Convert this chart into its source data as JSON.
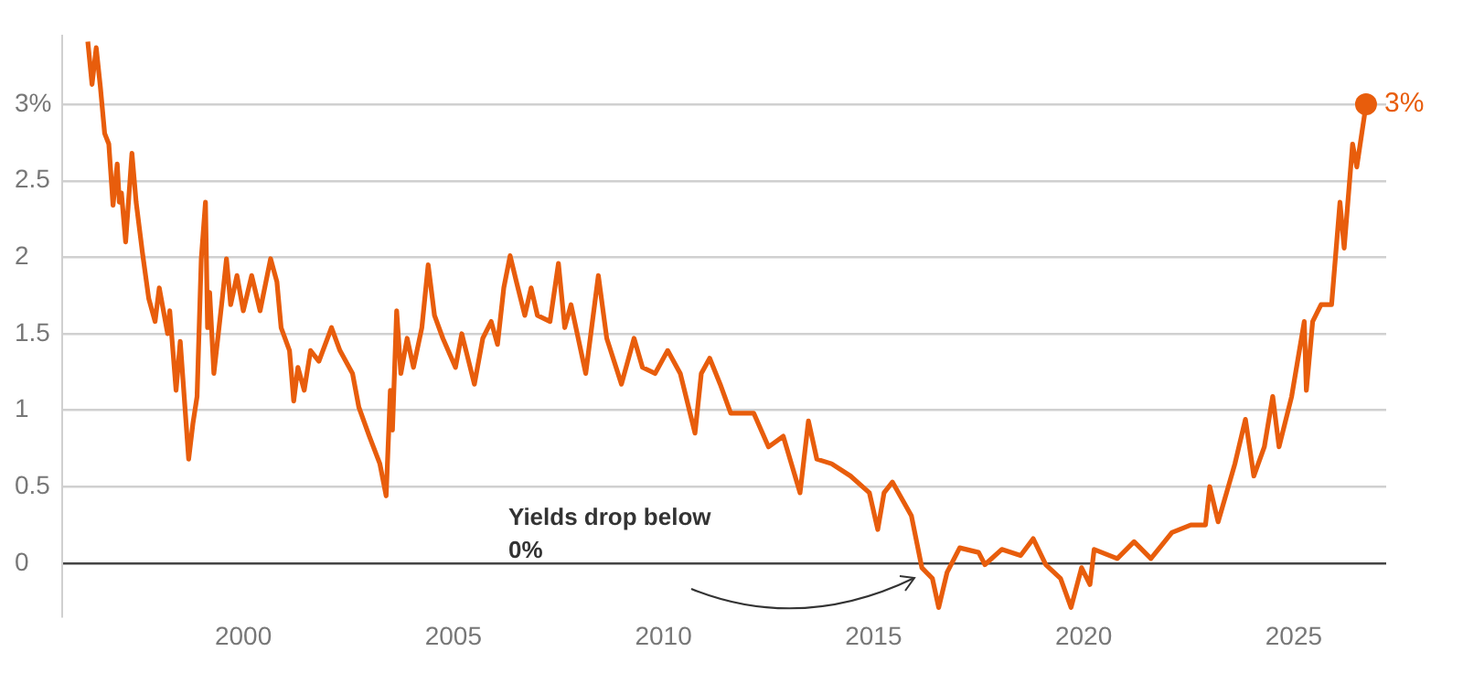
{
  "chart_data": {
    "type": "line",
    "x": [
      1996.3,
      1996.4,
      1996.5,
      1996.6,
      1996.7,
      1996.8,
      1996.9,
      1997.0,
      1997.05,
      1997.1,
      1997.2,
      1997.35,
      1997.45,
      1997.6,
      1997.75,
      1997.9,
      1998.0,
      1998.2,
      1998.25,
      1998.4,
      1998.5,
      1998.7,
      1998.8,
      1998.9,
      1999.0,
      1999.1,
      1999.15,
      1999.2,
      1999.3,
      1999.5,
      1999.6,
      1999.7,
      1999.85,
      2000.0,
      2000.2,
      2000.4,
      2000.65,
      2000.8,
      2000.9,
      2001.1,
      2001.2,
      2001.3,
      2001.45,
      2001.6,
      2001.8,
      2002.1,
      2002.3,
      2002.6,
      2002.75,
      2003.0,
      2003.25,
      2003.4,
      2003.5,
      2003.55,
      2003.65,
      2003.75,
      2003.9,
      2004.05,
      2004.25,
      2004.4,
      2004.55,
      2004.75,
      2005.05,
      2005.2,
      2005.5,
      2005.7,
      2005.9,
      2006.05,
      2006.2,
      2006.35,
      2006.5,
      2006.7,
      2006.85,
      2007.0,
      2007.3,
      2007.5,
      2007.65,
      2007.8,
      2008.15,
      2008.45,
      2008.65,
      2009.0,
      2009.3,
      2009.5,
      2009.8,
      2010.1,
      2010.4,
      2010.75,
      2010.9,
      2011.1,
      2011.35,
      2011.6,
      2012.15,
      2012.5,
      2012.85,
      2013.25,
      2013.45,
      2013.65,
      2014.0,
      2014.45,
      2014.9,
      2015.1,
      2015.25,
      2015.45,
      2015.9,
      2016.15,
      2016.4,
      2016.55,
      2016.75,
      2017.05,
      2017.5,
      2017.65,
      2018.05,
      2018.5,
      2018.8,
      2019.1,
      2019.45,
      2019.7,
      2019.95,
      2020.15,
      2020.25,
      2020.8,
      2021.2,
      2021.6,
      2022.1,
      2022.55,
      2022.9,
      2023.0,
      2023.2,
      2023.4,
      2023.6,
      2023.85,
      2024.05,
      2024.3,
      2024.5,
      2024.65,
      2024.95,
      2025.25,
      2025.3,
      2025.45,
      2025.65,
      2025.9,
      2026.1,
      2026.2,
      2026.4,
      2026.5,
      2026.7,
      2026.72
    ],
    "series": [
      {
        "color": "#e85d0c",
        "values": [
          3.41,
          3.13,
          3.37,
          3.11,
          2.81,
          2.74,
          2.34,
          2.61,
          2.36,
          2.42,
          2.1,
          2.68,
          2.36,
          2.03,
          1.73,
          1.58,
          1.8,
          1.5,
          1.65,
          1.13,
          1.45,
          0.68,
          0.91,
          1.09,
          1.99,
          2.36,
          1.54,
          1.77,
          1.24,
          1.73,
          1.99,
          1.69,
          1.88,
          1.65,
          1.88,
          1.65,
          1.99,
          1.84,
          1.54,
          1.39,
          1.06,
          1.28,
          1.13,
          1.39,
          1.32,
          1.54,
          1.39,
          1.24,
          1.02,
          0.83,
          0.65,
          0.44,
          1.13,
          0.87,
          1.65,
          1.24,
          1.47,
          1.28,
          1.54,
          1.95,
          1.62,
          1.47,
          1.28,
          1.5,
          1.17,
          1.47,
          1.58,
          1.43,
          1.8,
          2.01,
          1.84,
          1.62,
          1.8,
          1.62,
          1.58,
          1.96,
          1.54,
          1.69,
          1.24,
          1.88,
          1.47,
          1.17,
          1.47,
          1.28,
          1.24,
          1.39,
          1.24,
          0.85,
          1.24,
          1.34,
          1.17,
          0.98,
          0.98,
          0.76,
          0.83,
          0.46,
          0.93,
          0.68,
          0.65,
          0.57,
          0.46,
          0.22,
          0.46,
          0.53,
          0.31,
          -0.03,
          -0.1,
          -0.29,
          -0.06,
          0.1,
          0.07,
          -0.01,
          0.09,
          0.05,
          0.16,
          -0.01,
          -0.1,
          -0.29,
          -0.03,
          -0.14,
          0.09,
          0.03,
          0.14,
          0.03,
          0.2,
          0.25,
          0.25,
          0.5,
          0.27,
          0.46,
          0.65,
          0.94,
          0.57,
          0.76,
          1.09,
          0.76,
          1.09,
          1.58,
          1.13,
          1.58,
          1.69,
          1.69,
          2.36,
          2.06,
          2.74,
          2.59,
          2.96,
          3.0
        ],
        "value_labels": [
          null,
          null,
          null,
          null,
          null,
          null,
          null,
          null,
          null,
          null,
          null,
          null,
          null,
          null,
          null,
          null,
          null,
          null,
          null,
          null,
          null,
          null,
          null,
          null,
          null,
          null,
          null,
          null,
          null,
          null,
          null,
          null,
          null,
          null,
          null,
          null,
          null,
          null,
          null,
          null,
          null,
          null,
          null,
          null,
          null,
          null,
          null,
          null,
          null,
          null,
          null,
          null,
          null,
          null,
          null,
          null,
          null,
          null,
          null,
          null,
          null,
          null,
          null,
          null,
          null,
          null,
          null,
          null,
          null,
          null,
          null,
          null,
          null,
          null,
          null,
          null,
          null,
          null,
          null,
          null,
          null,
          null,
          null,
          null,
          null,
          null,
          null,
          null,
          null,
          null,
          null,
          null,
          null,
          null,
          null,
          null,
          null,
          null,
          null,
          null,
          null,
          null,
          null,
          null,
          null,
          null,
          null,
          null,
          null,
          null,
          null,
          null,
          null,
          null,
          null,
          null,
          null,
          null,
          null,
          null,
          null,
          null,
          null,
          null,
          null,
          null,
          null,
          null,
          null,
          null,
          null,
          null,
          null,
          null,
          null,
          null,
          null,
          null,
          null,
          null,
          null,
          null,
          null,
          null,
          null,
          null,
          null,
          "3%"
        ]
      }
    ],
    "xlim": [
      1995.7,
      2027.2
    ],
    "xticks": [
      2000,
      2005,
      2010,
      2015,
      2020,
      2025
    ],
    "ylim": [
      -0.35,
      3.45
    ],
    "yticks": [
      0,
      0.5,
      1,
      1.5,
      2,
      2.5,
      {
        "value": 3,
        "label": "3%"
      }
    ],
    "grid": "y",
    "legend": false,
    "line_style": "solid",
    "marker": "none",
    "annotations": [
      "Yields drop below 0%"
    ]
  }
}
